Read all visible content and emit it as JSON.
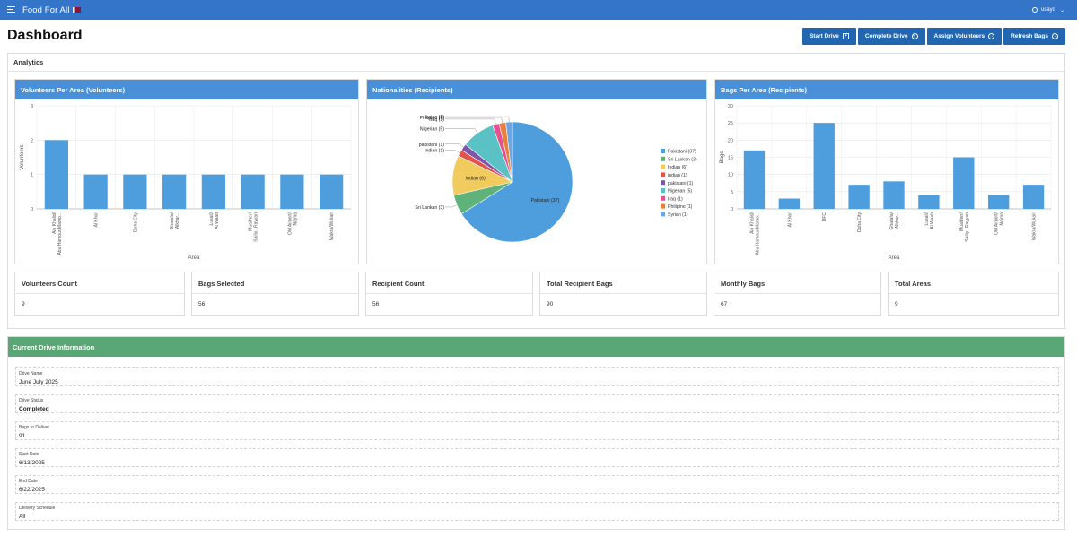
{
  "app": {
    "title": "Food For All",
    "user": "usayd"
  },
  "page": {
    "title": "Dashboard"
  },
  "actions": [
    {
      "label": "Start Drive",
      "icon": "plus-box-icon"
    },
    {
      "label": "Complete Drive",
      "icon": "check-circle-icon"
    },
    {
      "label": "Assign Volunteers",
      "icon": "arrow-right-circle-icon"
    },
    {
      "label": "Refresh Bags",
      "icon": "arrow-right-circle-icon"
    }
  ],
  "analytics": {
    "title": "Analytics",
    "charts": [
      {
        "title": "Volunteers Per Area (Volunteers)"
      },
      {
        "title": "Nationalities (Recipients)"
      },
      {
        "title": "Bags Per Area (Recipients)"
      }
    ],
    "stats": [
      {
        "label": "Volunteers Count",
        "value": "9"
      },
      {
        "label": "Bags Selected",
        "value": "56"
      },
      {
        "label": "Recipient Count",
        "value": "56"
      },
      {
        "label": "Total Recipient Bags",
        "value": "90"
      },
      {
        "label": "Monthly Bags",
        "value": "67"
      },
      {
        "label": "Total Areas",
        "value": "9"
      }
    ]
  },
  "chart_data": [
    {
      "type": "bar",
      "title": "Volunteers Per Area (Volunteers)",
      "xlabel": "Area",
      "ylabel": "Volunteers",
      "ylim": [
        0,
        3
      ],
      "yticks": [
        0,
        1,
        2,
        3
      ],
      "categories": [
        "Ain Khalid/Abu Hamour/Mamo...",
        "Al Khor",
        "Doha City",
        "Gharafa/Alkhar...",
        "Lusail/Al Waab",
        "Muaither/Sailiy...Rayyan",
        "Old Airport/Najma",
        "Wakra/Wukair"
      ],
      "values": [
        2,
        1,
        1,
        1,
        1,
        1,
        1,
        1
      ],
      "color": "#4e9ddc",
      "grid": true
    },
    {
      "type": "pie",
      "title": "Nationalities (Recipients)",
      "legend_position": "right",
      "slices": [
        {
          "label": "Pakistani",
          "value": 37,
          "color": "#4e9ddc"
        },
        {
          "label": "Sri Lankan",
          "value": 3,
          "color": "#5fb27a"
        },
        {
          "label": "Indian",
          "value": 6,
          "color": "#f2cb5e"
        },
        {
          "label": "indian",
          "value": 1,
          "color": "#e2534a"
        },
        {
          "label": "pakistani",
          "value": 1,
          "color": "#7e56a8"
        },
        {
          "label": "Nigerian",
          "value": 5,
          "color": "#5ac2c4"
        },
        {
          "label": "Iraq",
          "value": 1,
          "color": "#e94f8f"
        },
        {
          "label": "Philipino",
          "value": 1,
          "color": "#e8823a"
        },
        {
          "label": "Syrian",
          "value": 1,
          "color": "#6ba6e6"
        }
      ]
    },
    {
      "type": "bar",
      "title": "Bags Per Area (Recipients)",
      "xlabel": "Area",
      "ylabel": "Bags",
      "ylim": [
        0,
        30
      ],
      "yticks": [
        0,
        5,
        10,
        15,
        20,
        25,
        30
      ],
      "categories": [
        "Ain Khalid/Abu Hamour/Mamo...",
        "Al Khor",
        "DFC",
        "Doha City",
        "Gharafa/Alkhar...",
        "Lusail/Al Waab",
        "Muaither/Sailiy...Rayyan",
        "Old Airport/Najma",
        "Wakra/Wukair"
      ],
      "values": [
        17,
        3,
        25,
        7,
        8,
        4,
        15,
        4,
        7
      ],
      "color": "#4e9ddc",
      "grid": true
    }
  ],
  "drive": {
    "title": "Current Drive Information",
    "fields": [
      {
        "label": "Drive Name",
        "value": "June July 2025"
      },
      {
        "label": "Drive Status",
        "value": "Completed"
      },
      {
        "label": "Bags to Deliver",
        "value": "91"
      },
      {
        "label": "Start Date",
        "value": "6/13/2025"
      },
      {
        "label": "End Date",
        "value": "6/22/2025"
      },
      {
        "label": "Delivery Schedule",
        "value": "All"
      }
    ]
  }
}
